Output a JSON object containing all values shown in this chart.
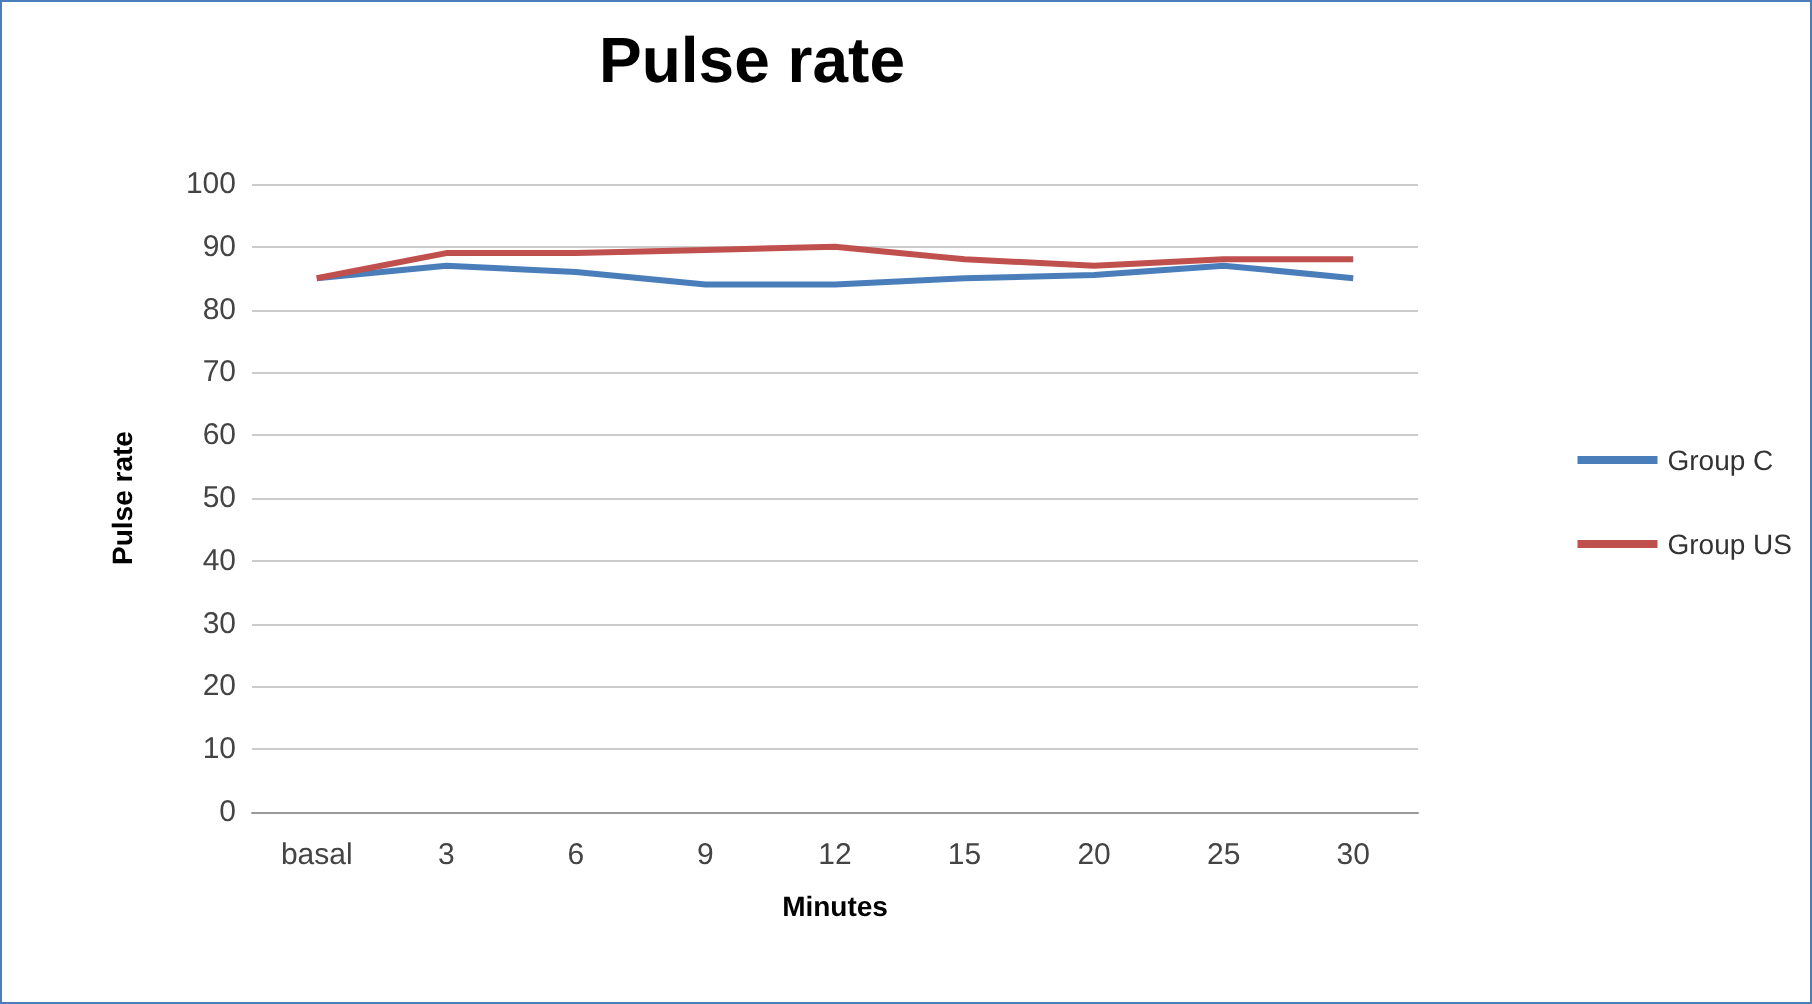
{
  "chart_data": {
    "type": "line",
    "title": "Pulse rate",
    "xlabel": "Minutes",
    "ylabel": "Pulse rate",
    "categories": [
      "basal",
      "3",
      "6",
      "9",
      "12",
      "15",
      "20",
      "25",
      "30"
    ],
    "series": [
      {
        "name": "Group C",
        "color": "#4a7eba",
        "values": [
          85,
          87,
          86,
          84,
          84,
          85,
          85.5,
          87,
          85
        ]
      },
      {
        "name": "Group US",
        "color": "#c0504d",
        "values": [
          85,
          89,
          89,
          89.5,
          90,
          88,
          87,
          88,
          88
        ]
      }
    ],
    "ylim": [
      0,
      100
    ],
    "yticks": [
      0,
      10,
      20,
      30,
      40,
      50,
      60,
      70,
      80,
      90,
      100
    ],
    "grid": "y",
    "legend": "right",
    "marker": "none"
  }
}
